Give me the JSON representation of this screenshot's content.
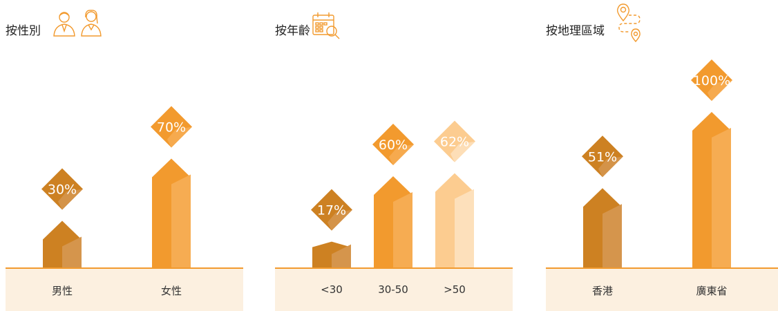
{
  "colors": {
    "dark": "#cd8122",
    "dark_face": "#d5954c",
    "orange": "#f29a2e",
    "orange_face": "#f6ac52",
    "light": "#fccc90",
    "light_face": "#fde0bb",
    "baseline": "#f29a2e",
    "category_strip": "#fcf0e0"
  },
  "panels": [
    {
      "title": "按性別",
      "icon": "male-female-users-icon",
      "chart_data": {
        "type": "bar",
        "categories": [
          "男性",
          "女性"
        ],
        "values": [
          30,
          70
        ],
        "labels": [
          "30%",
          "70%"
        ],
        "bar_colors": [
          "dark",
          "orange"
        ],
        "ylim": [
          0,
          100
        ]
      }
    },
    {
      "title": "按年齡",
      "icon": "calendar-search-icon",
      "chart_data": {
        "type": "bar",
        "categories": [
          "<30",
          "30-50",
          ">50"
        ],
        "values": [
          17,
          60,
          62
        ],
        "labels": [
          "17%",
          "60%",
          "62%"
        ],
        "bar_colors": [
          "dark",
          "orange",
          "light"
        ],
        "ylim": [
          0,
          100
        ]
      }
    },
    {
      "title": "按地理區域",
      "icon": "map-location-route-icon",
      "chart_data": {
        "type": "bar",
        "categories": [
          "香港",
          "廣東省"
        ],
        "values": [
          51,
          100
        ],
        "labels": [
          "51%",
          "100%"
        ],
        "bar_colors": [
          "dark",
          "orange"
        ],
        "ylim": [
          0,
          100
        ]
      }
    }
  ]
}
